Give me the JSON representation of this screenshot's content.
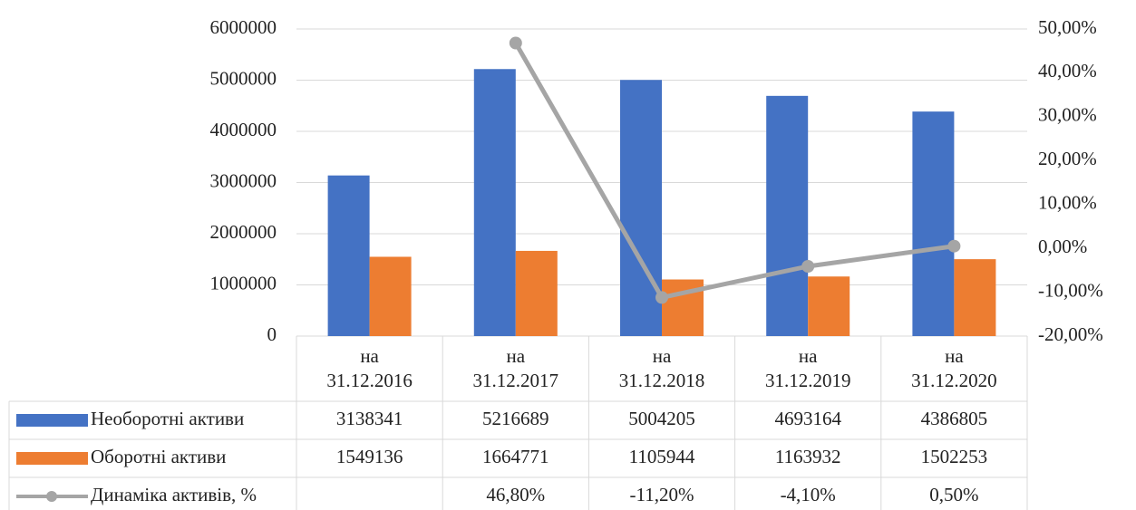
{
  "chart_data": {
    "type": "bar",
    "categories": [
      "на 31.12.2016",
      "на 31.12.2017",
      "на 31.12.2018",
      "на 31.12.2019",
      "на 31.12.2020"
    ],
    "series": [
      {
        "name": "Необоротні активи",
        "color": "#4472c4",
        "values": [
          3138341,
          5216689,
          5004205,
          4693164,
          4386805
        ]
      },
      {
        "name": "Оборотні активи",
        "color": "#ed7d31",
        "values": [
          1549136,
          1664771,
          1105944,
          1163932,
          1502253
        ]
      },
      {
        "name": "Динаміка активів, %",
        "color": "#a5a5a5",
        "type": "line",
        "axis": "y2",
        "values": [
          null,
          46.8,
          -11.2,
          -4.1,
          0.5
        ],
        "value_labels": [
          null,
          "46,80%",
          "-11,20%",
          "-4,10%",
          "0,50%"
        ]
      }
    ],
    "ylim": [
      0,
      6000000
    ],
    "yticks": [
      0,
      1000000,
      2000000,
      3000000,
      4000000,
      5000000,
      6000000
    ],
    "y2lim": [
      -20,
      50
    ],
    "y2ticks": [
      {
        "value": -20,
        "label": "-20,00%"
      },
      {
        "value": -10,
        "label": "-10,00%"
      },
      {
        "value": 0,
        "label": "0,00%"
      },
      {
        "value": 10,
        "label": "10,00%"
      },
      {
        "value": 20,
        "label": "20,00%"
      },
      {
        "value": 30,
        "label": "30,00%"
      },
      {
        "value": 40,
        "label": "40,00%"
      },
      {
        "value": 50,
        "label": "50,00%"
      }
    ],
    "grid": true,
    "data_table": true
  }
}
